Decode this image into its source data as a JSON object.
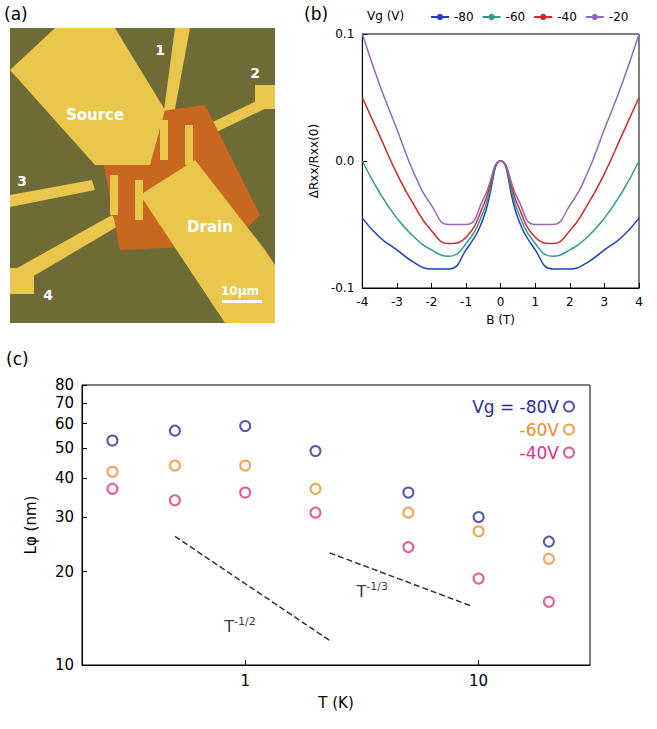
{
  "micrograph": {
    "letter": "(a)",
    "electrodes": [
      "Source",
      "Drain"
    ],
    "contacts": [
      "1",
      "2",
      "3",
      "4"
    ],
    "scale_bar": "10μm"
  },
  "chart_data": [
    {
      "letter": "(b)",
      "type": "line",
      "xlabel": "B (T)",
      "ylabel": "ΔRxx/Rxx(0)",
      "legend_title": "Vg (V)",
      "legend": "top",
      "x": [
        -4,
        -3.5,
        -3,
        -2.5,
        -2,
        -1.5,
        -1,
        -0.5,
        0,
        0.5,
        1,
        1.5,
        2,
        2.5,
        3,
        3.5,
        4
      ],
      "xlim": [
        -4,
        4
      ],
      "xticks": [
        -4,
        -3,
        -2,
        -1,
        0,
        1,
        2,
        3,
        4
      ],
      "ylim": [
        -0.1,
        0.1
      ],
      "yticks": [
        -0.1,
        {
          "value": 0,
          "label": "0.0"
        },
        0.1
      ],
      "grid": false,
      "series": [
        {
          "name": "-80",
          "color": "#1f3fbf",
          "values": [
            -0.045,
            -0.06,
            -0.07,
            -0.08,
            -0.085,
            -0.085,
            -0.07,
            -0.045,
            0,
            -0.045,
            -0.07,
            -0.085,
            -0.085,
            -0.08,
            -0.07,
            -0.06,
            -0.045
          ]
        },
        {
          "name": "-60",
          "color": "#2a9d8f",
          "values": [
            0,
            -0.025,
            -0.045,
            -0.06,
            -0.07,
            -0.075,
            -0.065,
            -0.04,
            0,
            -0.04,
            -0.065,
            -0.075,
            -0.07,
            -0.06,
            -0.045,
            -0.025,
            0
          ]
        },
        {
          "name": "-40",
          "color": "#d62728",
          "values": [
            0.05,
            0.02,
            -0.01,
            -0.035,
            -0.055,
            -0.065,
            -0.06,
            -0.035,
            0,
            -0.035,
            -0.06,
            -0.065,
            -0.055,
            -0.035,
            -0.01,
            0.02,
            0.05
          ]
        },
        {
          "name": "-20",
          "color": "#9467bd",
          "values": [
            0.1,
            0.06,
            0.025,
            -0.01,
            -0.035,
            -0.05,
            -0.05,
            -0.03,
            0,
            -0.03,
            -0.05,
            -0.05,
            -0.035,
            -0.01,
            0.025,
            0.06,
            0.1
          ]
        }
      ]
    },
    {
      "letter": "(c)",
      "type": "scatter",
      "log": true,
      "xlabel": "T (K)",
      "ylabel": "Lφ (nm)",
      "x": [
        0.27,
        0.5,
        1,
        2,
        5,
        10,
        20
      ],
      "xlim": [
        0.2,
        30
      ],
      "xticks": [
        1,
        10
      ],
      "ylim": [
        10,
        80
      ],
      "yticks": [
        10,
        20,
        30,
        40,
        50,
        60,
        70,
        80
      ],
      "grid": false,
      "legend": "top-right",
      "marker": "open circle",
      "series": [
        {
          "name": "Vg = -80V",
          "color": "#2b2d9a",
          "values": [
            53,
            57,
            59,
            49,
            36,
            30,
            25
          ]
        },
        {
          "name": "-60V",
          "color": "#f08a24",
          "values": [
            42,
            44,
            44,
            37,
            31,
            27,
            22
          ]
        },
        {
          "name": "-40V",
          "color": "#e0307e",
          "values": [
            37,
            34,
            36,
            31,
            24,
            19,
            16
          ]
        }
      ],
      "guides": [
        {
          "base": "T",
          "exponent": "-1/2",
          "x": [
            0.5,
            2.3
          ],
          "y": [
            26,
            12
          ],
          "label_x": 0.95,
          "label_y": 13.3,
          "line_style": "dashed"
        },
        {
          "base": "T",
          "exponent": "-1/3",
          "x": [
            2.3,
            9.3
          ],
          "y": [
            23,
            15.5
          ],
          "label_x": 3.5,
          "label_y": 17.3,
          "line_style": "dashed"
        }
      ]
    }
  ]
}
